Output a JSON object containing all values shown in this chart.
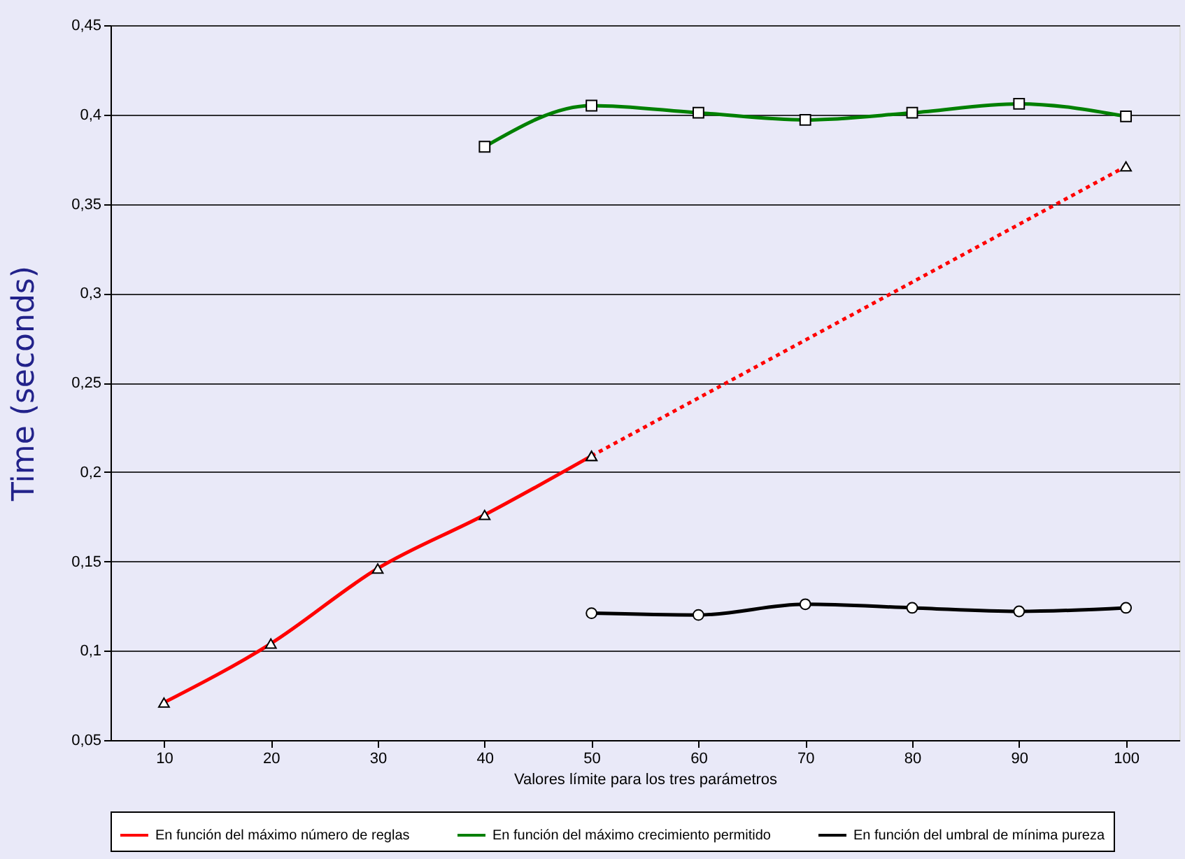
{
  "chart_data": {
    "type": "line",
    "xlabel": "Valores límite para los tres parámetros",
    "ylabel": "Time (seconds)",
    "xlim": [
      5,
      105
    ],
    "xticks": [
      10,
      20,
      30,
      40,
      50,
      60,
      70,
      80,
      90,
      100
    ],
    "ylim": [
      0.05,
      0.45
    ],
    "yticks": [
      {
        "value": 0.05,
        "label": "0,05"
      },
      {
        "value": 0.1,
        "label": "0,1"
      },
      {
        "value": 0.15,
        "label": "0,15"
      },
      {
        "value": 0.2,
        "label": "0,2"
      },
      {
        "value": 0.25,
        "label": "0,25"
      },
      {
        "value": 0.3,
        "label": "0,3"
      },
      {
        "value": 0.35,
        "label": "0,35"
      },
      {
        "value": 0.4,
        "label": "0,4"
      },
      {
        "value": 0.45,
        "label": "0,45"
      }
    ],
    "grid": "y",
    "legend": "bottom",
    "series": [
      {
        "name": "En función del máximo número de reglas",
        "color": "#ff0000",
        "marker": "triangle",
        "line_style": "solid",
        "x": [
          10,
          20,
          30,
          40,
          50
        ],
        "values": [
          0.071,
          0.104,
          0.146,
          0.176,
          0.209
        ]
      },
      {
        "color": "#ff0000",
        "marker": "triangle",
        "line_style": "dotted",
        "x": [
          50,
          100
        ],
        "values": [
          0.209,
          0.371
        ]
      },
      {
        "name": "En función del máximo crecimiento permitido",
        "color": "#008000",
        "marker": "square",
        "line_style": "solid",
        "x": [
          40,
          50,
          60,
          70,
          80,
          90,
          100
        ],
        "values": [
          0.382,
          0.405,
          0.401,
          0.397,
          0.401,
          0.406,
          0.399
        ]
      },
      {
        "name": "En función del umbral de mínima pureza",
        "color": "#000000",
        "marker": "circle",
        "line_style": "solid",
        "x": [
          50,
          60,
          70,
          80,
          90,
          100
        ],
        "values": [
          0.121,
          0.12,
          0.126,
          0.124,
          0.122,
          0.124
        ]
      }
    ]
  }
}
